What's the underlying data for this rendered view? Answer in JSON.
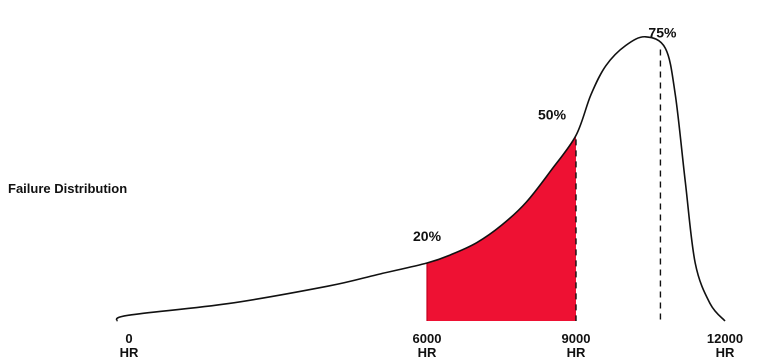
{
  "chart_data": {
    "type": "area",
    "title": "",
    "xlabel": "",
    "ylabel": "Failure Distribution",
    "x_unit": "HR",
    "x_ticks": [
      {
        "value": 0,
        "label": "0",
        "unit": "HR"
      },
      {
        "value": 6000,
        "label": "6000",
        "unit": "HR"
      },
      {
        "value": 9000,
        "label": "9000",
        "unit": "HR"
      },
      {
        "value": 12000,
        "label": "12000",
        "unit": "HR"
      }
    ],
    "curve": [
      [
        -250,
        0
      ],
      [
        0,
        2
      ],
      [
        2000,
        6
      ],
      [
        4000,
        12
      ],
      [
        5000,
        16
      ],
      [
        6000,
        20
      ],
      [
        6500,
        23
      ],
      [
        7000,
        27
      ],
      [
        7500,
        33
      ],
      [
        8000,
        41
      ],
      [
        8500,
        52
      ],
      [
        9000,
        64
      ],
      [
        9300,
        78
      ],
      [
        9600,
        88
      ],
      [
        10000,
        95
      ],
      [
        10400,
        98
      ],
      [
        10800,
        94
      ],
      [
        11000,
        78
      ],
      [
        11200,
        48
      ],
      [
        11400,
        20
      ],
      [
        11700,
        6
      ],
      [
        12000,
        0
      ]
    ],
    "shaded_region": {
      "from": 6000,
      "to": 9000,
      "color": "#ee1133"
    },
    "dashed_lines": [
      9000,
      10700
    ],
    "annotations": [
      {
        "x": 6000,
        "text": "20%"
      },
      {
        "x": 9000,
        "text": "50%"
      },
      {
        "x": 10700,
        "text": "75%"
      }
    ],
    "xlim": [
      -250,
      12000
    ],
    "ylim": [
      0,
      100
    ],
    "grid": false,
    "colors": {
      "line": "#111111",
      "fill": "#ee1133"
    }
  }
}
